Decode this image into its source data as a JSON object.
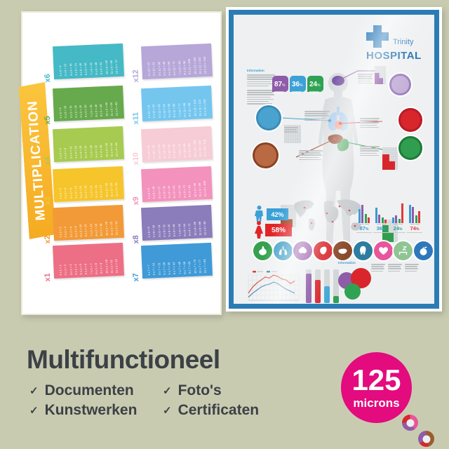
{
  "page_bg": "#c9cbb1",
  "left_poster": {
    "title": "MULTIPLICATION",
    "banner_color": "#f9b633",
    "blocks": [
      {
        "label": "x6",
        "color": "#45b9c5",
        "facts": [
          "1 x 6 = 6",
          "2 x 6 = 12",
          "3 x 6 = 18",
          "4 x 6 = 24",
          "5 x 6 = 30",
          "6 x 6 = 36",
          "7 x 6 = 42",
          "8 x 6 = 48",
          "9 x 6 = 54",
          "10 x 6 = 60",
          "11 x 6 = 66",
          "12 x 6 = 72"
        ]
      },
      {
        "label": "x5",
        "color": "#67a94d",
        "facts": [
          "1 x 5 = 5",
          "2 x 5 = 10",
          "3 x 5 = 15",
          "4 x 5 = 20",
          "5 x 5 = 25",
          "6 x 5 = 30",
          "7 x 5 = 35",
          "8 x 5 = 40",
          "9 x 5 = 45",
          "10 x 5 = 50",
          "11 x 5 = 55",
          "12 x 5 = 60"
        ]
      },
      {
        "label": "x4",
        "color": "#a6cb50",
        "facts": [
          "1 x 4 = 4",
          "2 x 4 = 8",
          "3 x 4 = 12",
          "4 x 4 = 16",
          "5 x 4 = 20",
          "6 x 4 = 24",
          "7 x 4 = 28",
          "8 x 4 = 32",
          "9 x 4 = 36",
          "10 x 4 = 40",
          "11 x 4 = 44",
          "12 x 4 = 48"
        ]
      },
      {
        "label": "x3",
        "color": "#f6c52c",
        "facts": [
          "1 x 3 = 3",
          "2 x 3 = 6",
          "3 x 3 = 9",
          "4 x 3 = 12",
          "5 x 3 = 15",
          "6 x 3 = 18",
          "7 x 3 = 21",
          "8 x 3 = 24",
          "9 x 3 = 27",
          "10 x 3 = 30",
          "11 x 3 = 33",
          "12 x 3 = 36"
        ]
      },
      {
        "label": "x2",
        "color": "#f29a37",
        "facts": [
          "1 x 2 = 2",
          "2 x 2 = 4",
          "3 x 2 = 6",
          "4 x 2 = 8",
          "5 x 2 = 10",
          "6 x 2 = 12",
          "7 x 2 = 14",
          "8 x 2 = 16",
          "9 x 2 = 18",
          "10 x 2 = 20",
          "11 x 2 = 22",
          "12 x 2 = 24"
        ]
      },
      {
        "label": "x1",
        "color": "#ed6f85",
        "facts": [
          "1 x 1 = 1",
          "2 x 1 = 2",
          "3 x 1 = 3",
          "4 x 1 = 4",
          "5 x 1 = 5",
          "6 x 1 = 6",
          "7 x 1 = 7",
          "8 x 1 = 8",
          "9 x 1 = 9",
          "10 x 1 = 10",
          "11 x 1 = 11",
          "12 x 1 = 12"
        ]
      },
      {
        "label": "x12",
        "color": "#b6a7d8",
        "facts": [
          "1 x 12 = 12",
          "2 x 12 = 24",
          "3 x 12 = 36",
          "4 x 12 = 48",
          "5 x 12 = 60",
          "6 x 12 = 72",
          "7 x 12 = 84",
          "8 x 12 = 96",
          "9 x 12 = 108",
          "10 x 12 = 120",
          "11 x 12 = 132",
          "12 x 12 = 144"
        ]
      },
      {
        "label": "x11",
        "color": "#74c6ef",
        "facts": [
          "1 x 11 = 11",
          "2 x 11 = 22",
          "3 x 11 = 33",
          "4 x 11 = 44",
          "5 x 11 = 55",
          "6 x 11 = 66",
          "7 x 11 = 77",
          "8 x 11 = 88",
          "9 x 11 = 99",
          "10 x 11 = 110",
          "11 x 11 = 121",
          "12 x 11 = 132"
        ]
      },
      {
        "label": "x10",
        "color": "#f6ccd6",
        "facts": [
          "1 x 10 = 10",
          "2 x 10 = 20",
          "3 x 10 = 30",
          "4 x 10 = 40",
          "5 x 10 = 50",
          "6 x 10 = 60",
          "7 x 10 = 70",
          "8 x 10 = 80",
          "9 x 10 = 90",
          "10 x 10 = 100",
          "11 x 10 = 110",
          "12 x 10 = 120"
        ]
      },
      {
        "label": "x9",
        "color": "#f392bd",
        "facts": [
          "1 x 9 = 9",
          "2 x 9 = 18",
          "3 x 9 = 27",
          "4 x 9 = 36",
          "5 x 9 = 45",
          "6 x 9 = 54",
          "7 x 9 = 63",
          "8 x 9 = 72",
          "9 x 9 = 81",
          "10 x 9 = 90",
          "11 x 9 = 99",
          "12 x 9 = 108"
        ]
      },
      {
        "label": "x8",
        "color": "#8b7cbb",
        "facts": [
          "1 x 8 = 8",
          "2 x 8 = 16",
          "3 x 8 = 24",
          "4 x 8 = 32",
          "5 x 8 = 40",
          "6 x 8 = 48",
          "7 x 8 = 56",
          "8 x 8 = 64",
          "9 x 8 = 72",
          "10 x 8 = 80",
          "11 x 8 = 88",
          "12 x 8 = 96"
        ]
      },
      {
        "label": "x7",
        "color": "#3f9ad7",
        "facts": [
          "1 x 7 = 7",
          "2 x 7 = 14",
          "3 x 7 = 21",
          "4 x 7 = 28",
          "5 x 7 = 35",
          "6 x 7 = 42",
          "7 x 7 = 49",
          "8 x 7 = 56",
          "9 x 7 = 63",
          "10 x 7 = 70",
          "11 x 7 = 77",
          "12 x 7 = 84"
        ]
      }
    ]
  },
  "right_poster": {
    "frame_color": "#2b7cb5",
    "brand": {
      "name": "Trinity",
      "title": "HOSPITAL",
      "color": "#2878b8"
    },
    "info_heading": "Information",
    "info_heading2": "Information",
    "badges": [
      {
        "value": "87",
        "unit": "%",
        "color": "#8f5ca8"
      },
      {
        "value": "36",
        "unit": "%",
        "color": "#3da0d6"
      },
      {
        "value": "24",
        "unit": "%",
        "color": "#2fa254"
      }
    ],
    "gender_stats": [
      {
        "value": "42%",
        "color": "#3aa0d8",
        "icon": "male-icon"
      },
      {
        "value": "58%",
        "color": "#e02528",
        "icon": "female-icon"
      }
    ],
    "bar_palette": [
      "#3a9bd5",
      "#8e5ba8",
      "#2fa254",
      "#e0393d"
    ],
    "bar_groups": [
      {
        "label": "87",
        "unit": "%",
        "label_color": "#3a9bd5",
        "heights": [
          20,
          26,
          13,
          8
        ]
      },
      {
        "label": "36",
        "unit": "%",
        "label_color": "#3a9bd5",
        "heights": [
          22,
          12,
          8,
          5
        ]
      },
      {
        "label": "24",
        "unit": "%",
        "label_color": "#2aa6a0",
        "heights": [
          8,
          11,
          6,
          28
        ]
      },
      {
        "label": "74",
        "unit": "%",
        "label_color": "#e0393d",
        "heights": [
          26,
          23,
          11,
          17
        ]
      }
    ],
    "organ_icons": [
      {
        "name": "stomach-icon",
        "color": "#35a14f"
      },
      {
        "name": "lungs-icon",
        "color": "#3f9fc6"
      },
      {
        "name": "brain-icon",
        "color": "#9a5fad"
      },
      {
        "name": "heart-organ-icon",
        "color": "#d8262c"
      },
      {
        "name": "liver-icon",
        "color": "#8a4a2a"
      },
      {
        "name": "tooth-icon",
        "color": "#2c7da0"
      },
      {
        "name": "heart-icon",
        "color": "#e8559a"
      },
      {
        "name": "sleep-icon",
        "color": "#8fc493"
      },
      {
        "name": "apple-icon",
        "color": "#2f77bc"
      }
    ],
    "line_chart": {
      "red": [
        14,
        26,
        34,
        40,
        46,
        44,
        50,
        47,
        42,
        40,
        33,
        38
      ],
      "blue": [
        6,
        14,
        20,
        26,
        30,
        32,
        36,
        33,
        27,
        22,
        18,
        14
      ],
      "red_color": "#d8453c",
      "blue_color": "#3f7fae"
    },
    "track_bars": {
      "heights": [
        42,
        33,
        24,
        10
      ],
      "colors": [
        "#8e5ba8",
        "#d8262c",
        "#42aad6",
        "#2fa254"
      ]
    },
    "venn_colors": [
      "#8f5ca8",
      "#d8262c",
      "#2fa254"
    ],
    "donuts": [
      {
        "segments": [
          [
            "#d8262c",
            55
          ],
          [
            "#8f5ca8",
            45
          ]
        ]
      },
      {
        "segments": [
          [
            "#2aa6a0",
            62
          ],
          [
            "#8f5ca8",
            38
          ]
        ]
      },
      {
        "segments": [
          [
            "#e8559a",
            40
          ],
          [
            "#8f5ca8",
            35
          ],
          [
            "#d8262c",
            25
          ]
        ]
      },
      {
        "segments": [
          [
            "#9c5b2e",
            45
          ],
          [
            "#d8262c",
            20
          ],
          [
            "#8f5ca8",
            35
          ]
        ]
      }
    ]
  },
  "footer": {
    "title": "Multifunctioneel",
    "features": [
      "Documenten",
      "Kunstwerken",
      "Foto's",
      "Certificaten"
    ],
    "badge": {
      "value": "125",
      "unit": "microns",
      "color": "#e30b7d"
    }
  }
}
